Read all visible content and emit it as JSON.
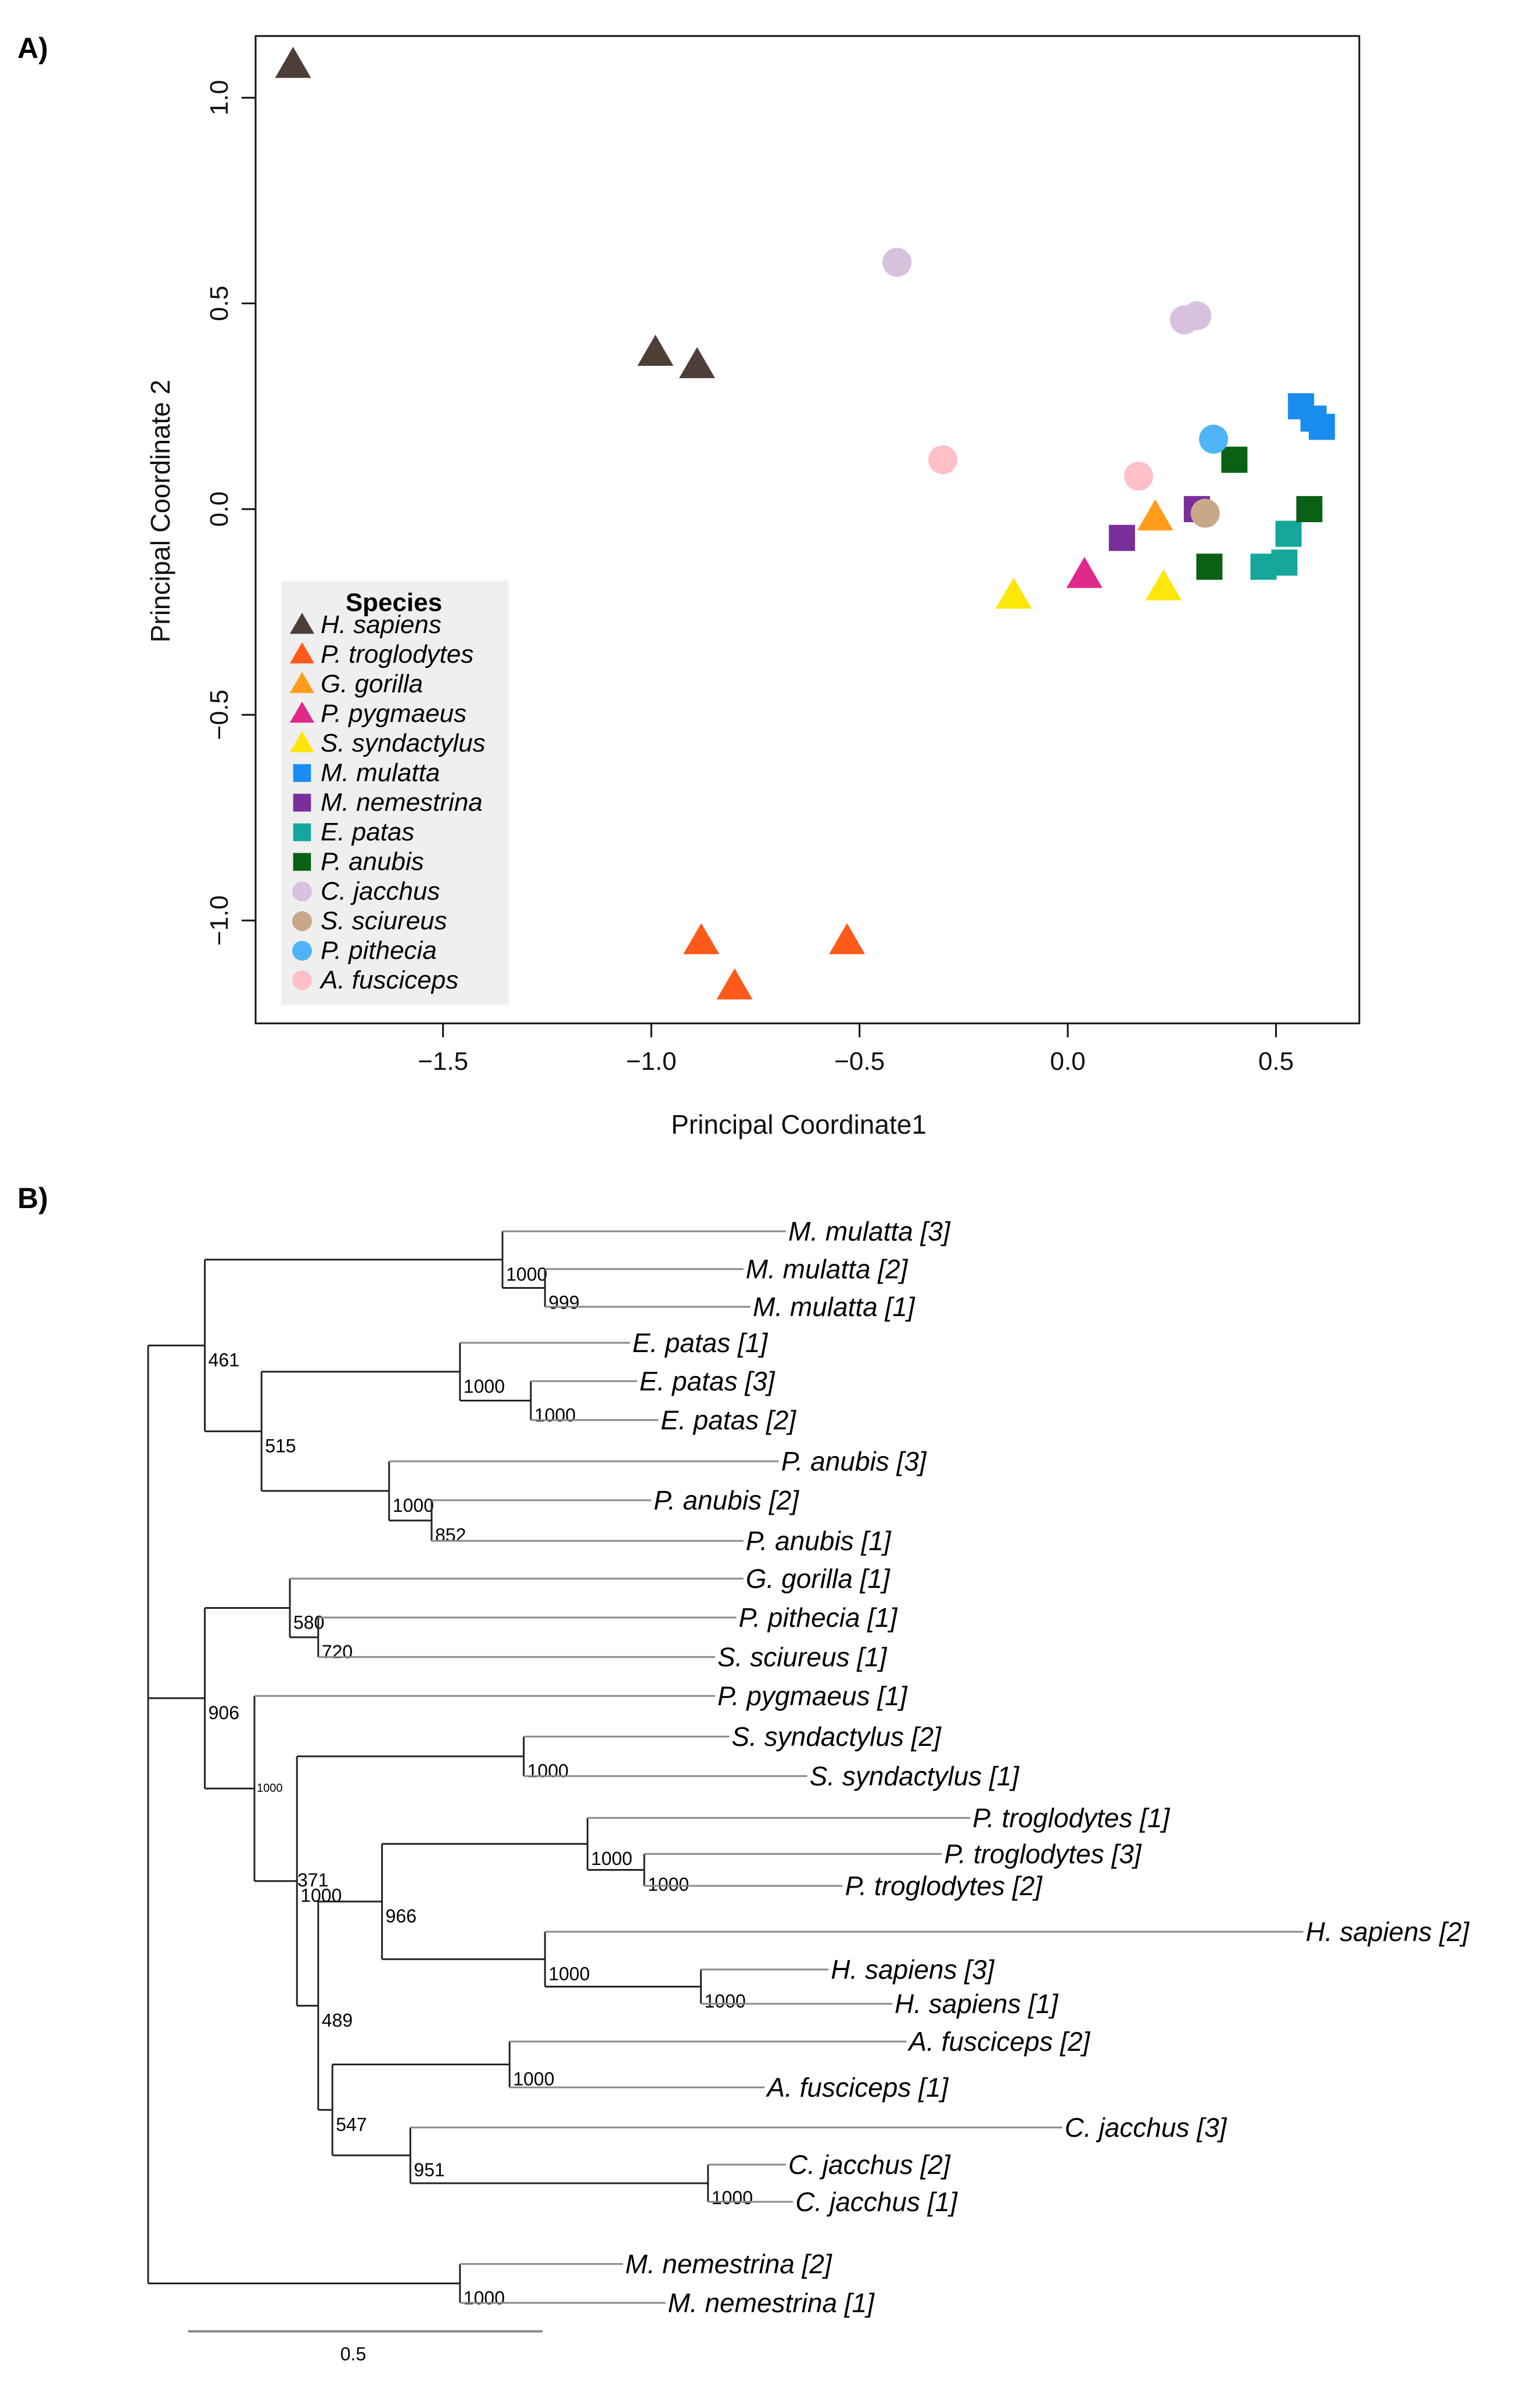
{
  "panel_a_label": "A)",
  "panel_b_label": "B)",
  "chart_data": [
    {
      "type": "scatter",
      "title": "",
      "xlabel": "Principal Coordinate1",
      "ylabel": "Principal Coordinate 2",
      "xlim": [
        -1.95,
        0.7
      ],
      "ylim": [
        -1.25,
        1.15
      ],
      "xticks": [
        "−1.5",
        "−1.0",
        "−0.5",
        "0.0",
        "0.5"
      ],
      "xtick_values": [
        -1.5,
        -1.0,
        -0.5,
        0.0,
        0.5
      ],
      "yticks": [
        "−1.0",
        "−0.5",
        "0.0",
        "0.5",
        "1.0"
      ],
      "ytick_values": [
        -1.0,
        -0.5,
        0.0,
        0.5,
        1.0
      ],
      "legend_title": "Species",
      "legend_position": "bottom-left",
      "series": [
        {
          "name": "H. sapiens",
          "color": "#4d3f38",
          "shape": "triangle",
          "points": [
            [
              -1.86,
              1.08
            ],
            [
              -0.99,
              0.38
            ],
            [
              -0.89,
              0.35
            ]
          ]
        },
        {
          "name": "P. troglodytes",
          "color": "#ff5a1a",
          "shape": "triangle",
          "points": [
            [
              -0.88,
              -1.05
            ],
            [
              -0.53,
              -1.05
            ],
            [
              -0.8,
              -1.16
            ]
          ]
        },
        {
          "name": "G. gorilla",
          "color": "#ff9c1a",
          "shape": "triangle",
          "points": [
            [
              0.21,
              -0.02
            ]
          ]
        },
        {
          "name": "P. pygmaeus",
          "color": "#e0288a",
          "shape": "triangle",
          "points": [
            [
              0.04,
              -0.16
            ]
          ]
        },
        {
          "name": "S. syndactylus",
          "color": "#ffe60a",
          "shape": "triangle",
          "points": [
            [
              -0.13,
              -0.21
            ],
            [
              0.23,
              -0.19
            ]
          ]
        },
        {
          "name": "M. mulatta",
          "color": "#1a8cf0",
          "shape": "square",
          "points": [
            [
              0.56,
              0.25
            ],
            [
              0.59,
              0.22
            ],
            [
              0.61,
              0.2
            ]
          ]
        },
        {
          "name": "M. nemestrina",
          "color": "#7a2e9a",
          "shape": "square",
          "points": [
            [
              0.13,
              -0.07
            ],
            [
              0.31,
              0.0
            ]
          ]
        },
        {
          "name": "E. patas",
          "color": "#14a79a",
          "shape": "square",
          "points": [
            [
              0.47,
              -0.14
            ],
            [
              0.52,
              -0.13
            ],
            [
              0.53,
              -0.06
            ]
          ]
        },
        {
          "name": "P. anubis",
          "color": "#0a6014",
          "shape": "square",
          "points": [
            [
              0.4,
              0.12
            ],
            [
              0.34,
              -0.14
            ],
            [
              0.58,
              0.0
            ]
          ]
        },
        {
          "name": "C. jacchus",
          "color": "#d7c2de",
          "shape": "circle",
          "points": [
            [
              -0.41,
              0.6
            ],
            [
              0.28,
              0.46
            ],
            [
              0.31,
              0.47
            ]
          ]
        },
        {
          "name": "S. sciureus",
          "color": "#c9a789",
          "shape": "circle",
          "points": [
            [
              0.33,
              -0.01
            ]
          ]
        },
        {
          "name": "P. pithecia",
          "color": "#4fb4f5",
          "shape": "circle",
          "points": [
            [
              0.35,
              0.17
            ]
          ]
        },
        {
          "name": "A. fusciceps",
          "color": "#ffc0c8",
          "shape": "circle",
          "points": [
            [
              -0.3,
              0.12
            ],
            [
              0.17,
              0.08
            ]
          ]
        }
      ]
    },
    {
      "type": "tree",
      "title": "",
      "scale_bar_label": "0.5",
      "scale_bar_value": 0.5,
      "tree": {
        "children": [
          {
            "len": 0.08,
            "boot": "461",
            "children": [
              {
                "len": 0.42,
                "boot": "1000",
                "children": [
                  {
                    "len": 0.4,
                    "label": "M. mulatta [3]"
                  },
                  {
                    "len": 0.06,
                    "boot": "999",
                    "children": [
                      {
                        "len": 0.28,
                        "label": "M. mulatta [2]"
                      },
                      {
                        "len": 0.29,
                        "label": "M. mulatta [1]"
                      }
                    ]
                  }
                ]
              },
              {
                "len": 0.08,
                "boot": "515",
                "children": [
                  {
                    "len": 0.28,
                    "boot": "1000",
                    "children": [
                      {
                        "len": 0.24,
                        "label": "E. patas [1]"
                      },
                      {
                        "len": 0.1,
                        "boot": "1000",
                        "children": [
                          {
                            "len": 0.15,
                            "label": "E. patas [3]"
                          },
                          {
                            "len": 0.18,
                            "label": "E. patas [2]"
                          }
                        ]
                      }
                    ]
                  },
                  {
                    "len": 0.18,
                    "boot": "1000",
                    "children": [
                      {
                        "len": 0.55,
                        "label": "P. anubis [3]"
                      },
                      {
                        "len": 0.06,
                        "boot": "852",
                        "children": [
                          {
                            "len": 0.31,
                            "label": "P. anubis [2]"
                          },
                          {
                            "len": 0.44,
                            "label": "P. anubis [1]"
                          }
                        ]
                      }
                    ]
                  }
                ]
              }
            ]
          },
          {
            "len": 0.08,
            "boot": "906",
            "children": [
              {
                "len": 0.12,
                "boot": "580",
                "children": [
                  {
                    "len": 0.64,
                    "label": "G. gorilla [1]"
                  },
                  {
                    "len": 0.04,
                    "boot": "720",
                    "children": [
                      {
                        "len": 0.59,
                        "label": "P. pithecia [1]"
                      },
                      {
                        "len": 0.56,
                        "label": "S. sciureus [1]"
                      }
                    ]
                  }
                ]
              },
              {
                "len": 0.07,
                "boot": "",
                "children": [
                  {
                    "len": 0.65,
                    "label": "P. pygmaeus [1]"
                  },
                  {
                    "len": 0.06,
                    "boot": "1000",
                    "children": [
                      {
                        "len": 0.32,
                        "boot": "1000",
                        "children": [
                          {
                            "len": 0.29,
                            "label": "S. syndactylus [2]"
                          },
                          {
                            "len": 0.4,
                            "label": "S. syndactylus [1]"
                          }
                        ]
                      },
                      {
                        "len": 0.03,
                        "boot": "489",
                        "children": [
                          {
                            "len": 0.09,
                            "boot": "966",
                            "children": [
                              {
                                "len": 0.29,
                                "boot": "1000",
                                "children": [
                                  {
                                    "len": 0.54,
                                    "label": "P. troglodytes [1]"
                                  },
                                  {
                                    "len": 0.08,
                                    "boot": "1000",
                                    "children": [
                                      {
                                        "len": 0.42,
                                        "label": "P. troglodytes [3]"
                                      },
                                      {
                                        "len": 0.28,
                                        "label": "P. troglodytes [2]"
                                      }
                                    ]
                                  }
                                ]
                              },
                              {
                                "len": 0.23,
                                "boot": "1000",
                                "children": [
                                  {
                                    "len": 1.07,
                                    "label": "H. sapiens [2]"
                                  },
                                  {
                                    "len": 0.22,
                                    "boot": "1000",
                                    "children": [
                                      {
                                        "len": 0.18,
                                        "label": "H. sapiens [3]"
                                      },
                                      {
                                        "len": 0.27,
                                        "label": "H. sapiens [1]"
                                      }
                                    ]
                                  }
                                ]
                              }
                            ]
                          },
                          {
                            "len": 0.02,
                            "boot": "547",
                            "children": [
                              {
                                "len": 0.25,
                                "boot": "1000",
                                "children": [
                                  {
                                    "len": 0.56,
                                    "label": "A. fusciceps [2]"
                                  },
                                  {
                                    "len": 0.36,
                                    "label": "A. fusciceps [1]"
                                  }
                                ]
                              },
                              {
                                "len": 0.11,
                                "boot": "951",
                                "children": [
                                  {
                                    "len": 0.92,
                                    "label": "C. jacchus [3]"
                                  },
                                  {
                                    "len": 0.42,
                                    "boot": "1000",
                                    "children": [
                                      {
                                        "len": 0.11,
                                        "label": "C. jacchus [2]"
                                      },
                                      {
                                        "len": 0.12,
                                        "label": "C. jacchus [1]"
                                      }
                                    ]
                                  }
                                ]
                              }
                            ]
                          }
                        ]
                      }
                    ]
                  }
                ]
              }
            ]
          },
          {
            "len": 0.44,
            "boot": "1000",
            "children": [
              {
                "len": 0.23,
                "label": "M. nemestrina [2]"
              },
              {
                "len": 0.29,
                "label": "M. nemestrina [1]"
              }
            ]
          }
        ]
      },
      "internal_labels_extra": {
        "node_371": "371",
        "node_small": "1000"
      }
    }
  ]
}
